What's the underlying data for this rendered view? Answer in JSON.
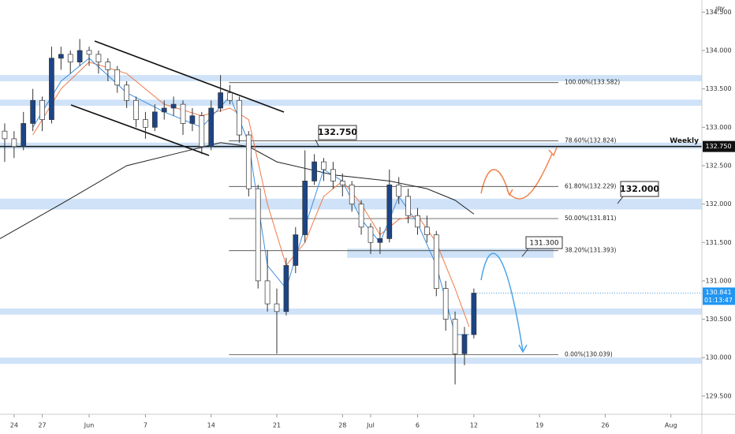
{
  "chart_data": {
    "type": "candlestick",
    "symbol_unit": "JPY",
    "xlim": [
      -1.5,
      73.3
    ],
    "ylim": [
      129.262,
      134.658
    ],
    "xticks": [
      {
        "value": 0,
        "label": "24"
      },
      {
        "value": 3,
        "label": "27"
      },
      {
        "value": 8,
        "label": "Jun"
      },
      {
        "value": 14,
        "label": "7"
      },
      {
        "value": 21,
        "label": "14"
      },
      {
        "value": 28,
        "label": "21"
      },
      {
        "value": 35,
        "label": "28"
      },
      {
        "value": 38,
        "label": "Jul"
      },
      {
        "value": 43,
        "label": "6"
      },
      {
        "value": 49,
        "label": "12"
      },
      {
        "value": 56,
        "label": "19"
      },
      {
        "value": 63,
        "label": "26"
      },
      {
        "value": 70,
        "label": "Aug"
      }
    ],
    "yticks": [
      {
        "value": 129.5,
        "label": "129.500"
      },
      {
        "value": 130,
        "label": "130.000"
      },
      {
        "value": 130.5,
        "label": "130.500"
      },
      {
        "value": 131,
        "label": "131.000"
      },
      {
        "value": 131.5,
        "label": "131.500"
      },
      {
        "value": 132,
        "label": "132.000"
      },
      {
        "value": 132.5,
        "label": "132.500"
      },
      {
        "value": 133,
        "label": "133.000"
      },
      {
        "value": 133.5,
        "label": "133.500"
      },
      {
        "value": 134,
        "label": "134.000"
      },
      {
        "value": 134.5,
        "label": "134.500"
      }
    ],
    "up_color": "#1c4587",
    "down_color": "#ffffff",
    "x": [
      -1,
      0,
      1,
      2,
      3,
      4,
      5,
      6,
      7,
      8,
      9,
      10,
      11,
      12,
      13,
      14,
      15,
      16,
      17,
      18,
      19,
      20,
      21,
      22,
      23,
      24,
      25,
      26,
      27,
      28,
      29,
      30,
      31,
      32,
      33,
      34,
      35,
      36,
      37,
      38,
      39,
      40,
      41,
      42,
      43,
      44,
      45,
      46,
      47,
      48,
      49
    ],
    "candles": [
      [
        132.95,
        133.05,
        132.55,
        132.85
      ],
      [
        132.85,
        132.95,
        132.6,
        132.75
      ],
      [
        132.75,
        133.2,
        132.7,
        133.05
      ],
      [
        133.05,
        133.5,
        132.95,
        133.35
      ],
      [
        133.35,
        133.4,
        132.95,
        133.1
      ],
      [
        133.1,
        134.05,
        133.05,
        133.9
      ],
      [
        133.9,
        134.05,
        133.75,
        133.95
      ],
      [
        133.95,
        134.0,
        133.7,
        133.85
      ],
      [
        133.85,
        134.15,
        133.8,
        134.0
      ],
      [
        134.0,
        134.05,
        133.8,
        133.95
      ],
      [
        133.95,
        134.0,
        133.7,
        133.85
      ],
      [
        133.85,
        133.9,
        133.6,
        133.75
      ],
      [
        133.75,
        133.8,
        133.45,
        133.55
      ],
      [
        133.55,
        133.6,
        133.25,
        133.35
      ],
      [
        133.35,
        133.4,
        133.0,
        133.1
      ],
      [
        133.1,
        133.2,
        132.85,
        133.0
      ],
      [
        133.0,
        133.3,
        132.95,
        133.2
      ],
      [
        133.2,
        133.35,
        133.1,
        133.25
      ],
      [
        133.25,
        133.4,
        133.15,
        133.3
      ],
      [
        133.3,
        133.35,
        132.9,
        133.05
      ],
      [
        133.05,
        133.25,
        132.95,
        133.15
      ],
      [
        133.15,
        133.2,
        132.65,
        132.75
      ],
      [
        132.75,
        133.35,
        132.7,
        133.25
      ],
      [
        133.25,
        133.68,
        133.2,
        133.45
      ],
      [
        133.45,
        133.55,
        133.3,
        133.35
      ],
      [
        133.35,
        133.4,
        132.8,
        132.9
      ],
      [
        132.9,
        132.95,
        132.1,
        132.2
      ],
      [
        132.2,
        132.25,
        130.9,
        131.0
      ],
      [
        131.0,
        131.4,
        130.6,
        130.7
      ],
      [
        130.7,
        130.9,
        130.05,
        130.6
      ],
      [
        130.6,
        131.3,
        130.55,
        131.2
      ],
      [
        131.2,
        131.7,
        131.1,
        131.6
      ],
      [
        131.6,
        132.7,
        131.5,
        132.3
      ],
      [
        132.3,
        132.65,
        132.25,
        132.55
      ],
      [
        132.55,
        132.6,
        132.3,
        132.45
      ],
      [
        132.45,
        132.55,
        132.2,
        132.3
      ],
      [
        132.3,
        132.4,
        132.1,
        132.25
      ],
      [
        132.25,
        132.3,
        131.9,
        132.0
      ],
      [
        132.0,
        132.05,
        131.6,
        131.7
      ],
      [
        131.7,
        131.75,
        131.35,
        131.5
      ],
      [
        131.5,
        131.7,
        131.35,
        131.55
      ],
      [
        131.55,
        132.45,
        131.5,
        132.25
      ],
      [
        132.25,
        132.35,
        132.0,
        132.1
      ],
      [
        132.1,
        132.2,
        131.75,
        131.85
      ],
      [
        131.85,
        131.95,
        131.6,
        131.7
      ],
      [
        131.7,
        131.85,
        131.5,
        131.6
      ],
      [
        131.6,
        131.65,
        130.8,
        130.9
      ],
      [
        130.9,
        131.0,
        130.35,
        130.5
      ],
      [
        130.5,
        130.6,
        129.65,
        130.05
      ],
      [
        130.05,
        130.4,
        129.9,
        130.3
      ],
      [
        130.3,
        130.9,
        130.25,
        130.84
      ]
    ],
    "lines": [
      {
        "color": "#222222",
        "x": [
          -1.5,
          5,
          12,
          18,
          22,
          25,
          28,
          34,
          40,
          44,
          47,
          49
        ],
        "values": [
          131.55,
          132.0,
          132.5,
          132.68,
          132.8,
          132.75,
          132.55,
          132.38,
          132.3,
          132.2,
          132.05,
          131.87
        ]
      },
      {
        "color": "#f07a4a",
        "x": [
          2,
          5,
          8,
          12,
          16,
          20,
          23,
          25,
          27,
          29,
          31,
          33,
          35,
          37,
          39,
          41,
          43,
          45,
          47,
          48.5
        ],
        "values": [
          132.9,
          133.5,
          133.85,
          133.7,
          133.3,
          133.15,
          133.25,
          133.1,
          132.0,
          131.2,
          131.5,
          132.1,
          132.3,
          132.0,
          131.6,
          131.8,
          131.85,
          131.5,
          130.9,
          130.4
        ]
      },
      {
        "color": "#3d8fe0",
        "x": [
          2,
          5,
          8,
          12,
          16,
          20,
          23,
          25,
          27,
          29,
          31,
          33,
          35,
          37,
          39,
          41,
          43,
          45,
          47,
          48.5
        ],
        "values": [
          133.0,
          133.6,
          133.9,
          133.45,
          133.2,
          133.0,
          133.4,
          132.8,
          131.2,
          130.9,
          131.7,
          132.45,
          132.3,
          131.8,
          131.5,
          132.1,
          131.75,
          131.2,
          130.3,
          130.3
        ]
      }
    ],
    "zones": [
      [
        133.6,
        133.68
      ],
      [
        133.28,
        133.36
      ],
      [
        132.72,
        132.8
      ],
      [
        131.93,
        132.07
      ],
      [
        130.56,
        130.64
      ],
      [
        129.92,
        130.0
      ]
    ],
    "partial_zone": {
      "range": [
        131.3,
        131.42
      ],
      "days": [
        35.5,
        57.5
      ]
    },
    "fib_days": [
      22.9,
      58
    ],
    "fib_levels": [
      {
        "value": 133.582,
        "label": "100.00%(133.582)"
      },
      {
        "value": 132.824,
        "label": "78.60%(132.824)"
      },
      {
        "value": 132.229,
        "label": "61.80%(132.229)"
      },
      {
        "value": 131.811,
        "label": "50.00%(131.811)"
      },
      {
        "value": 131.393,
        "label": "38.20%(131.393)"
      },
      {
        "value": 130.039,
        "label": "0.00%(130.039)"
      }
    ],
    "weekly": {
      "value": 132.75,
      "label": "Weekly",
      "tag": "132.750"
    },
    "annotations": [
      "132.750",
      "132.000",
      "131.300"
    ],
    "last_price": {
      "value": 130.841,
      "label": "130.841",
      "countdown": "01:13:47"
    }
  }
}
